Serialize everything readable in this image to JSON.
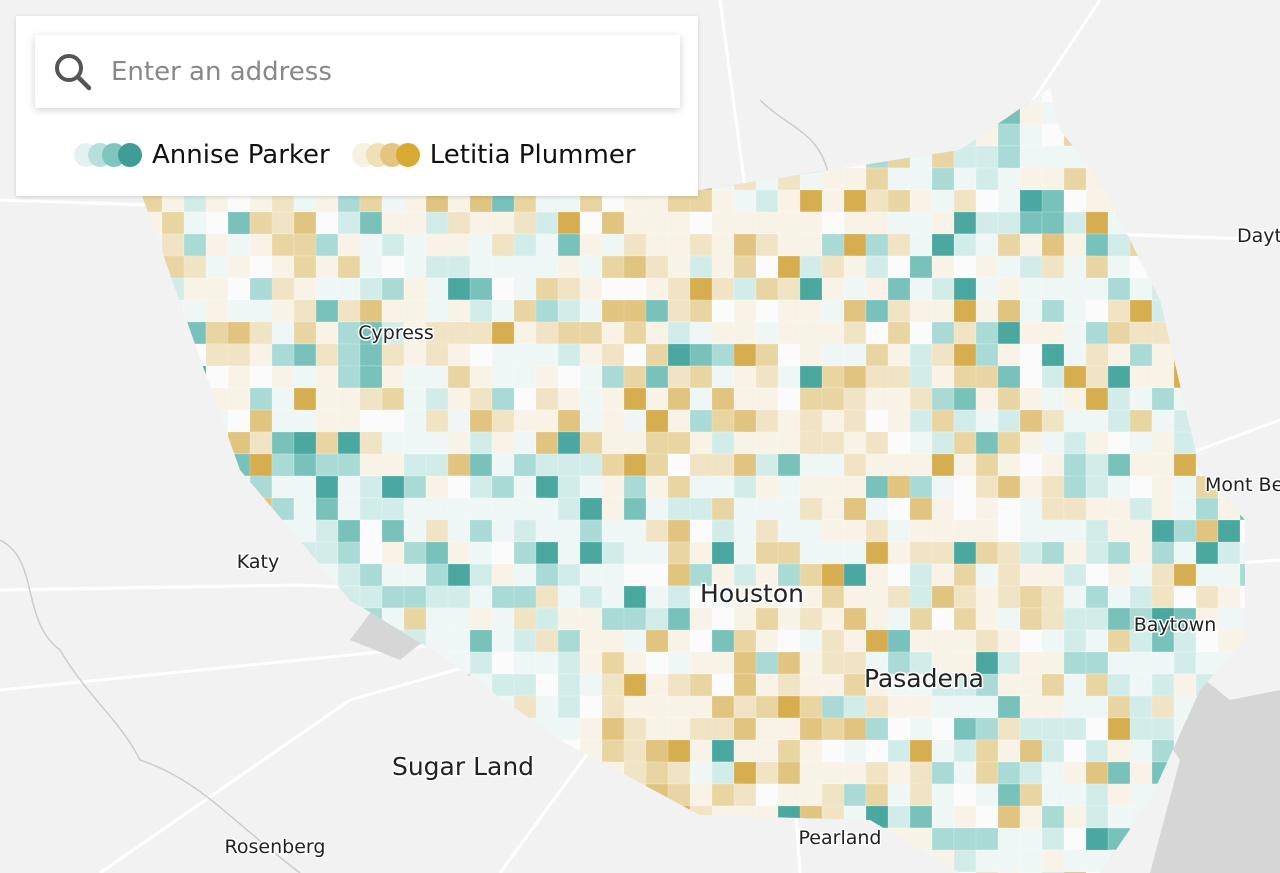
{
  "search": {
    "placeholder": "Enter an address"
  },
  "legend": [
    {
      "label": "Annise Parker"
    },
    {
      "label": "Letitia Plummer"
    }
  ],
  "places": [
    {
      "label": "Cypress"
    },
    {
      "label": "Katy"
    },
    {
      "label": "Houston"
    },
    {
      "label": "Sugar Land"
    },
    {
      "label": "Rosenberg"
    },
    {
      "label": "Pearland"
    },
    {
      "label": "Pasadena"
    },
    {
      "label": "Baytown"
    },
    {
      "label": "Mont Be"
    },
    {
      "label": "Dayt"
    }
  ]
}
